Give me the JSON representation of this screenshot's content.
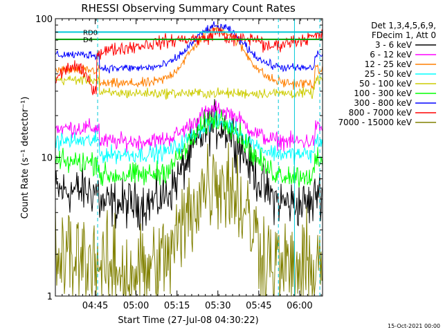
{
  "chart_data": {
    "type": "line",
    "title": "RHESSI Observing Summary Count Rates",
    "xlabel": "Start Time (27-Jul-08 04:30:22)",
    "ylabel": "Count Rate (s⁻¹ detector⁻¹)",
    "yscale": "log",
    "ylim": [
      1,
      100
    ],
    "xlim_minutes": [
      0,
      98
    ],
    "y_tick_labels": [
      "1",
      "10",
      "100"
    ],
    "x_ticks": [
      {
        "label": "04:45",
        "t": 14.6
      },
      {
        "label": "05:00",
        "t": 29.6
      },
      {
        "label": "05:15",
        "t": 44.6
      },
      {
        "label": "05:30",
        "t": 59.6
      },
      {
        "label": "05:45",
        "t": 74.6
      },
      {
        "label": "06:00",
        "t": 89.6
      }
    ],
    "legend_header": [
      "Det 1,3,4,5,6,9,",
      "FDecim 1, Att 0"
    ],
    "legend_position": "right",
    "timestamp": "15-Oct-2021 00:00",
    "flags": [
      {
        "label": "RD0",
        "color": "#00c8d8"
      },
      {
        "label": "N",
        "color": "#00c8d8"
      },
      {
        "label": "D4",
        "color": "#00a000"
      }
    ],
    "series": [
      {
        "name": "3 - 6 keV",
        "color": "#000000",
        "base": 4.6,
        "peak": 17,
        "mode": "mid",
        "noise": 0.28,
        "gap": true
      },
      {
        "name": "6 - 12 keV",
        "color": "#ff00ff",
        "base": 13,
        "peak": 22,
        "mode": "mid",
        "noise": 0.1
      },
      {
        "name": "12 - 25 keV",
        "color": "#ff7f00",
        "base": 34,
        "peak": 84,
        "mode": "high",
        "noise": 0.06
      },
      {
        "name": "25 - 50 keV",
        "color": "#00ffff",
        "base": 10.5,
        "peak": 18,
        "mode": "mid",
        "noise": 0.1
      },
      {
        "name": "50 - 100 keV",
        "color": "#cccc00",
        "base": 29,
        "peak": 25,
        "mode": "high",
        "noise": 0.06
      },
      {
        "name": "100 - 300 keV",
        "color": "#00ff00",
        "base": 7.4,
        "peak": 19,
        "mode": "mid",
        "noise": 0.14
      },
      {
        "name": "300 - 800 keV",
        "color": "#0000ff",
        "base": 44,
        "peak": 88,
        "mode": "high",
        "noise": 0.05
      },
      {
        "name": "800 - 7000 keV",
        "color": "#ff0000",
        "base": 63,
        "peak": 80,
        "mode": "top",
        "noise": 0.08
      },
      {
        "name": "7000 - 15000 keV",
        "color": "#808000",
        "base": 1.5,
        "peak": 7,
        "mode": "low",
        "noise": 0.6
      }
    ],
    "reference_lines": [
      {
        "name": "RD0",
        "value": 80,
        "color": "#00c8d8"
      },
      {
        "name": "D4",
        "value": 71,
        "color": "#00a000"
      }
    ],
    "vertical_markers": [
      {
        "t": 15.5,
        "color": "#00c8d8",
        "style": "dashed"
      },
      {
        "t": 81.8,
        "color": "#00c8d8",
        "style": "dashed"
      },
      {
        "t": 87.7,
        "color": "#00c8d8",
        "style": "solid"
      },
      {
        "t": 97.0,
        "color": "#00c8d8",
        "style": "dashed"
      }
    ]
  }
}
